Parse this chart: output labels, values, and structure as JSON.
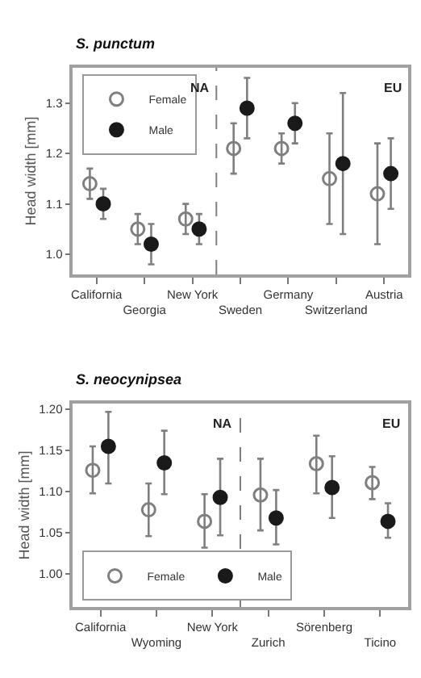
{
  "chart_data": [
    {
      "type": "scatter",
      "title": "S. punctum",
      "ylabel": "Head width [mm]",
      "categories": [
        "California",
        "Georgia",
        "New York",
        "Sweden",
        "Germany",
        "Switzerland",
        "Austria"
      ],
      "ylim": [
        0.96,
        1.37
      ],
      "yticks": [
        {
          "value": 1.0,
          "label": "1.0"
        },
        1.1,
        1.2,
        1.3
      ],
      "legend": "top left",
      "marker": "circle",
      "series": [
        {
          "name": "Female",
          "color": "#7f7f7f",
          "marker": "circle-open",
          "values": [
            1.14,
            1.05,
            1.07,
            1.21,
            1.21,
            1.15,
            1.12
          ],
          "errors": [
            [
              1.11,
              1.17
            ],
            [
              1.02,
              1.08
            ],
            [
              1.04,
              1.1
            ],
            [
              1.16,
              1.26
            ],
            [
              1.18,
              1.24
            ],
            [
              1.06,
              1.24
            ],
            [
              1.02,
              1.22
            ]
          ]
        },
        {
          "name": "Male",
          "color": "#1a1a1a",
          "values": [
            1.1,
            1.02,
            1.05,
            1.29,
            1.26,
            1.18,
            1.16
          ],
          "errors": [
            [
              1.07,
              1.13
            ],
            [
              0.98,
              1.06
            ],
            [
              1.02,
              1.08
            ],
            [
              1.23,
              1.35
            ],
            [
              1.22,
              1.3
            ],
            [
              1.04,
              1.32
            ],
            [
              1.09,
              1.23
            ]
          ]
        }
      ],
      "annotations": [
        "NA",
        "EU"
      ]
    },
    {
      "type": "scatter",
      "title": "S. neocynipsea",
      "ylabel": "Head width [mm]",
      "categories": [
        "California",
        "Wyoming",
        "New York",
        "Zurich",
        "Sörenberg",
        "Ticino"
      ],
      "ylim": [
        0.96,
        1.207
      ],
      "yticks": [
        {
          "value": 1.0,
          "label": "1.00"
        },
        1.05,
        {
          "value": 1.1,
          "label": "1.10"
        },
        1.15,
        {
          "value": 1.2,
          "label": "1.20"
        }
      ],
      "legend": "bottom left",
      "marker": "circle",
      "series": [
        {
          "name": "Female",
          "color": "#7f7f7f",
          "marker": "circle-open",
          "values": [
            1.126,
            1.078,
            1.064,
            1.096,
            1.134,
            1.111
          ],
          "errors": [
            [
              1.098,
              1.155
            ],
            [
              1.046,
              1.11
            ],
            [
              1.032,
              1.097
            ],
            [
              1.053,
              1.14
            ],
            [
              1.098,
              1.168
            ],
            [
              1.091,
              1.13
            ]
          ]
        },
        {
          "name": "Male",
          "color": "#1a1a1a",
          "values": [
            1.155,
            1.135,
            1.093,
            1.068,
            1.105,
            1.064
          ],
          "errors": [
            [
              1.11,
              1.197
            ],
            [
              1.097,
              1.174
            ],
            [
              1.047,
              1.14
            ],
            [
              1.036,
              1.102
            ],
            [
              1.068,
              1.143
            ],
            [
              1.044,
              1.086
            ]
          ]
        }
      ],
      "annotations": [
        "NA",
        "EU"
      ]
    }
  ]
}
